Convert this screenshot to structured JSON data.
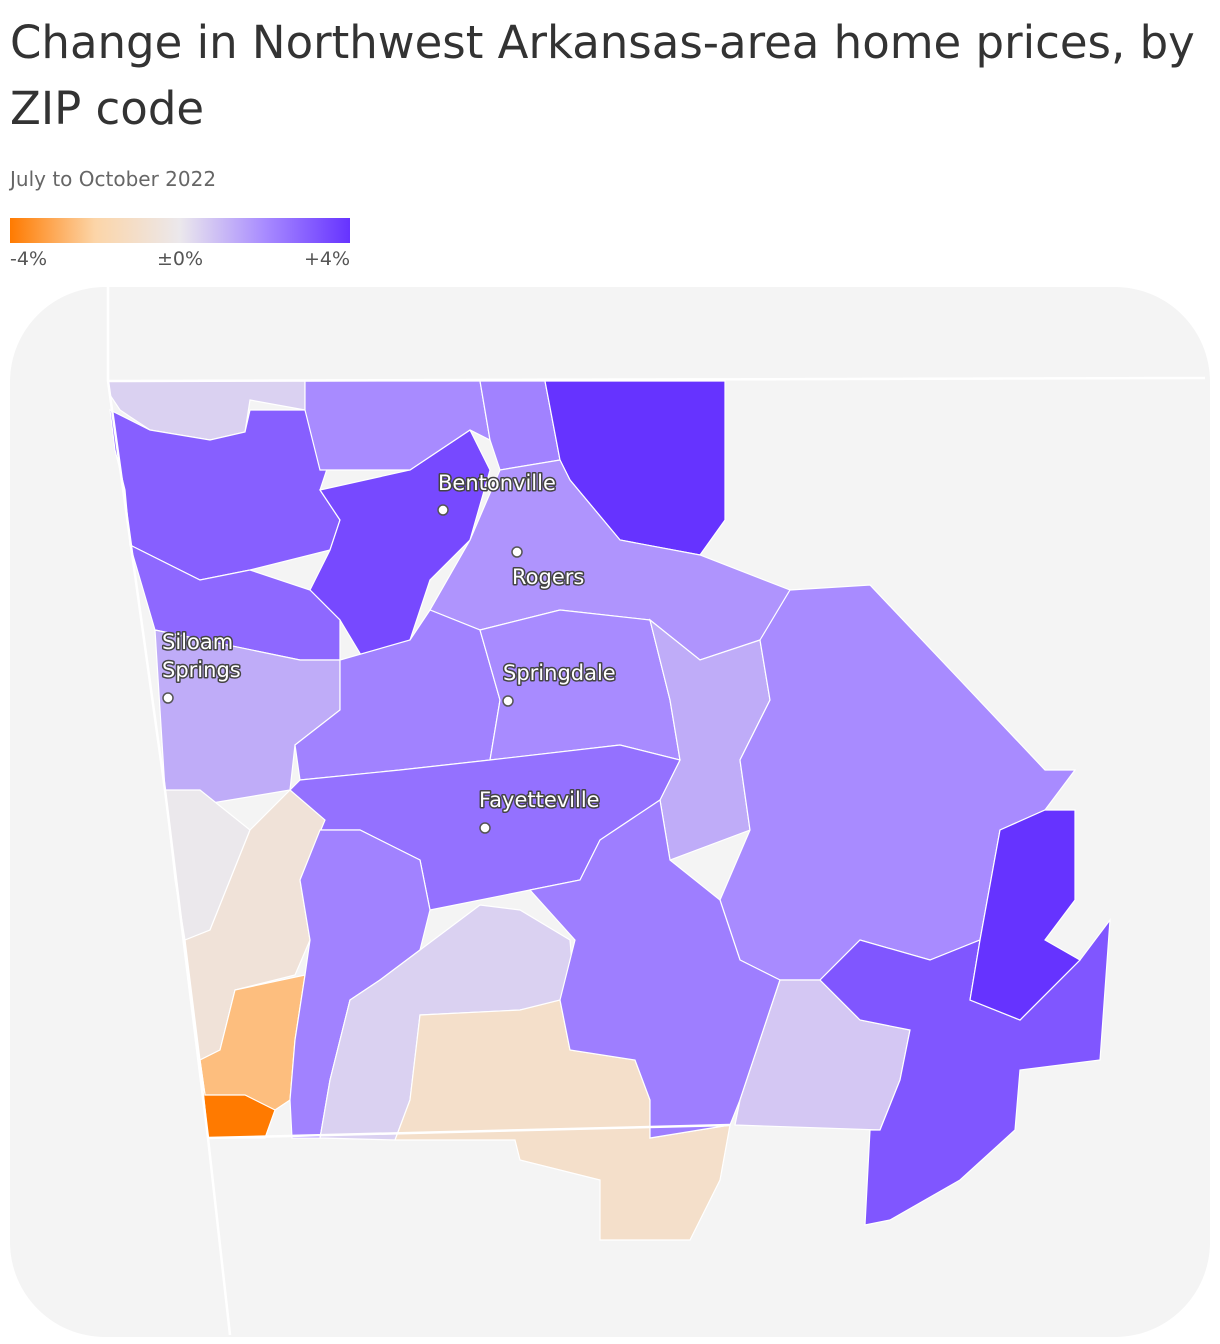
{
  "chart_data": {
    "type": "choropleth",
    "title": "Change in Northwest Arkansas-area home prices, by ZIP code",
    "subtitle": "July to October 2022",
    "legend_ticks": [
      {
        "value": -4,
        "label": "-4%"
      },
      {
        "value": 0,
        "label": "±0%"
      },
      {
        "value": 4,
        "label": "+4%"
      }
    ],
    "values": [
      0.5,
      3,
      3.5,
      2,
      2.2,
      4,
      2.8,
      1.3,
      1.8,
      2.2,
      2.0,
      1.3,
      2.0,
      2.6,
      0,
      -0.6,
      -2.5,
      -4,
      2.2,
      0.5,
      -1,
      2.3,
      0.7,
      3.2,
      4
    ],
    "cities": [
      {
        "label": "Bentonville"
      },
      {
        "label": "Rogers"
      },
      {
        "label": [
          "Siloam",
          "Springs"
        ]
      },
      {
        "label": "Springdale"
      },
      {
        "label": "Fayetteville"
      }
    ]
  }
}
